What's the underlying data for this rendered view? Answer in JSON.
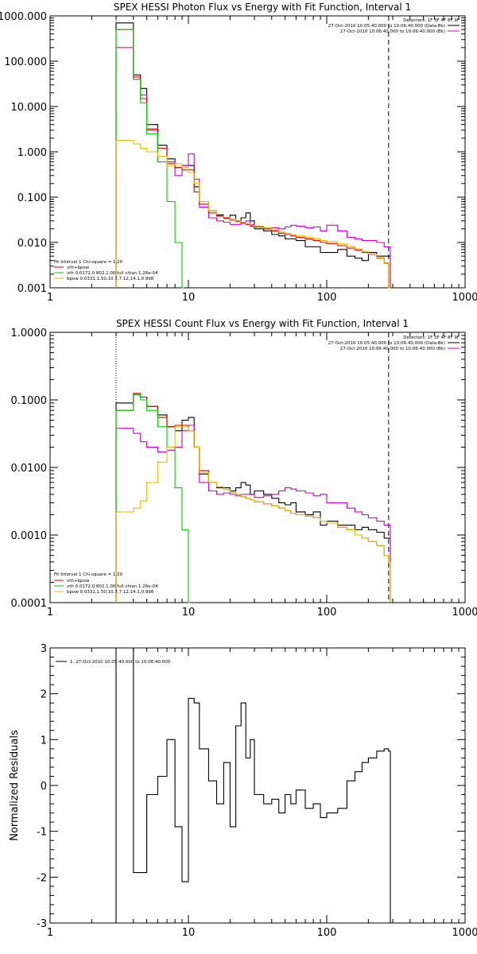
{
  "chart_data": [
    {
      "type": "line",
      "title": "SPEX HESSI Photon Flux vs Energy with Fit Function, Interval 1",
      "xlabel": "",
      "ylabel": "",
      "xscale": "log",
      "yscale": "log",
      "xlim": [
        1,
        1000
      ],
      "ylim": [
        0.001,
        1000
      ],
      "xticks": [
        "1",
        "10",
        "100",
        "1000"
      ],
      "yticks": [
        "0.001",
        "0.010",
        "0.100",
        "1.000",
        "10.000",
        "100.000",
        "1000.000"
      ],
      "info": {
        "line1": "Detectors: 1F 3F 4F 8F 9F",
        "line2": "27-Oct-2010 10:05:40.000 to 10:06:40.000 (Data-Bk)",
        "line3": "27-Oct-2010 10:06:40.000 to 10:06:40.000 (Bk)"
      },
      "fitlegend": {
        "header": "Fit Interval 1     Chi-square = 1.20",
        "items": [
          {
            "label": "vth+bpow",
            "color": "#e00000"
          },
          {
            "label": "vth 0.0172,0.802,1.00  full chian 1.26e-04",
            "color": "#00d000"
          },
          {
            "label": "bpow 0.0331,1.50,10.7,7.12,14.1,0.998",
            "color": "#e0c000"
          }
        ]
      },
      "cutoffs": {
        "dotted": 3,
        "dashed": 280
      },
      "series": [
        {
          "key": "data",
          "color": "#000000",
          "x": [
            3,
            3.5,
            4,
            4.5,
            5,
            6,
            7,
            8,
            9,
            10,
            11,
            12,
            14,
            16,
            18,
            20,
            22,
            24,
            26,
            28,
            30,
            35,
            40,
            45,
            50,
            55,
            60,
            70,
            80,
            90,
            100,
            120,
            140,
            160,
            180,
            200,
            230,
            260,
            280
          ],
          "y": [
            700,
            700,
            50,
            25,
            4,
            1.4,
            0.7,
            0.45,
            0.5,
            0.5,
            0.17,
            0.08,
            0.05,
            0.04,
            0.035,
            0.04,
            0.03,
            0.035,
            0.045,
            0.03,
            0.02,
            0.018,
            0.015,
            0.014,
            0.012,
            0.012,
            0.011,
            0.008,
            0.008,
            0.006,
            0.006,
            0.007,
            0.005,
            0.0045,
            0.004,
            0.006,
            0.005,
            0.005,
            0.005
          ]
        },
        {
          "key": "background",
          "color": "#d000d0",
          "x": [
            3,
            3.5,
            4,
            4.5,
            5,
            6,
            7,
            8,
            9,
            10,
            11,
            12,
            14,
            16,
            18,
            20,
            22,
            24,
            26,
            28,
            30,
            35,
            40,
            45,
            50,
            55,
            60,
            70,
            80,
            90,
            100,
            120,
            140,
            160,
            180,
            200,
            230,
            260,
            280
          ],
          "y": [
            200,
            200,
            40,
            18,
            3,
            0.6,
            0.6,
            0.3,
            0.5,
            0.9,
            0.25,
            0.06,
            0.035,
            0.03,
            0.028,
            0.025,
            0.025,
            0.028,
            0.03,
            0.025,
            0.022,
            0.02,
            0.021,
            0.02,
            0.022,
            0.024,
            0.023,
            0.021,
            0.022,
            0.018,
            0.024,
            0.018,
            0.013,
            0.012,
            0.011,
            0.011,
            0.01,
            0.008,
            0.008
          ]
        },
        {
          "key": "total-fit",
          "color": "#e00000",
          "x": [
            3,
            3.5,
            4,
            4.5,
            5,
            6,
            7,
            8,
            9,
            10,
            11,
            12,
            14,
            16,
            18,
            20,
            22,
            24,
            26,
            28,
            30,
            35,
            40,
            45,
            50,
            55,
            60,
            70,
            80,
            90,
            100,
            120,
            140,
            160,
            180,
            200,
            230,
            260,
            280
          ],
          "y": [
            500,
            500,
            45,
            15,
            3.2,
            1.2,
            0.55,
            0.45,
            0.4,
            0.4,
            0.13,
            0.07,
            0.045,
            0.038,
            0.034,
            0.031,
            0.029,
            0.027,
            0.025,
            0.023,
            0.022,
            0.02,
            0.018,
            0.016,
            0.015,
            0.014,
            0.013,
            0.012,
            0.011,
            0.01,
            0.0095,
            0.0085,
            0.0075,
            0.0068,
            0.006,
            0.0055,
            0.0045,
            0.0035,
            0.001
          ]
        },
        {
          "key": "thermal",
          "color": "#00d000",
          "x": [
            3,
            3.5,
            4,
            4.5,
            5,
            6,
            7,
            8,
            9
          ],
          "y": [
            500,
            500,
            40,
            12,
            2.5,
            0.6,
            0.08,
            0.01,
            0.001
          ]
        },
        {
          "key": "broken-power",
          "color": "#e0c000",
          "x": [
            3,
            3.5,
            4,
            4.5,
            5,
            6,
            7,
            8,
            9,
            10,
            11,
            12,
            14,
            16,
            18,
            20,
            22,
            24,
            26,
            28,
            30,
            35,
            40,
            45,
            50,
            55,
            60,
            70,
            80,
            90,
            100,
            120,
            140,
            160,
            180,
            200,
            230,
            260,
            280
          ],
          "y": [
            1.8,
            1.8,
            1.5,
            1.2,
            1,
            0.8,
            0.5,
            0.55,
            0.45,
            0.35,
            0.2,
            0.08,
            0.05,
            0.042,
            0.036,
            0.033,
            0.03,
            0.028,
            0.026,
            0.024,
            0.023,
            0.021,
            0.019,
            0.017,
            0.016,
            0.015,
            0.014,
            0.013,
            0.012,
            0.011,
            0.0105,
            0.0093,
            0.0082,
            0.0072,
            0.0063,
            0.0056,
            0.0046,
            0.0036,
            0.001
          ]
        }
      ]
    },
    {
      "type": "line",
      "title": "SPEX HESSI Count Flux vs Energy with Fit Function, Interval 1",
      "xlabel": "",
      "ylabel": "",
      "xscale": "log",
      "yscale": "log",
      "xlim": [
        1,
        1000
      ],
      "ylim": [
        0.0001,
        1
      ],
      "xticks": [
        "1",
        "10",
        "100",
        "1000"
      ],
      "yticks": [
        "0.0001",
        "0.0010",
        "0.0100",
        "0.1000",
        "1.0000"
      ],
      "info": {
        "line1": "Detectors: 1F 3F 4F 8F 9F",
        "line2": "27-Oct-2010 10:05:40.000 to 10:06:40.000 (Data-Bk)",
        "line3": "27-Oct-2010 10:06:40.000 to 10:06:40.000 (Bk)"
      },
      "fitlegend": {
        "header": "Fit Interval 1     Chi-square = 1.20",
        "items": [
          {
            "label": "vth+bpow",
            "color": "#e00000"
          },
          {
            "label": "vth 0.0172,0.802,1.00  full chian 1.26e-04",
            "color": "#00d000"
          },
          {
            "label": "bpow 0.0331,1.50,10.7,7.12,14.1,0.998",
            "color": "#e0c000"
          }
        ]
      },
      "cutoffs": {
        "dotted": 3,
        "dashed": 280
      },
      "series": [
        {
          "key": "data",
          "color": "#000000",
          "x": [
            3,
            3.5,
            4,
            4.5,
            5,
            6,
            7,
            8,
            9,
            10,
            11,
            12,
            14,
            16,
            18,
            20,
            22,
            24,
            26,
            28,
            30,
            35,
            40,
            45,
            50,
            55,
            60,
            70,
            80,
            90,
            100,
            120,
            140,
            160,
            180,
            200,
            230,
            260,
            280
          ],
          "y": [
            0.09,
            0.09,
            0.12,
            0.11,
            0.08,
            0.06,
            0.04,
            0.035,
            0.05,
            0.055,
            0.02,
            0.008,
            0.006,
            0.005,
            0.005,
            0.0045,
            0.005,
            0.006,
            0.0055,
            0.004,
            0.0045,
            0.004,
            0.0035,
            0.003,
            0.0028,
            0.003,
            0.0022,
            0.002,
            0.0022,
            0.0014,
            0.0016,
            0.0014,
            0.0014,
            0.0012,
            0.0013,
            0.0012,
            0.0011,
            0.0009,
            0.0009
          ]
        },
        {
          "key": "background",
          "color": "#d000d0",
          "x": [
            3,
            3.5,
            4,
            4.5,
            5,
            6,
            7,
            8,
            9,
            10,
            11,
            12,
            14,
            16,
            18,
            20,
            22,
            24,
            26,
            28,
            30,
            35,
            40,
            45,
            50,
            55,
            60,
            70,
            80,
            90,
            100,
            120,
            140,
            160,
            180,
            200,
            230,
            260,
            280
          ],
          "y": [
            0.038,
            0.038,
            0.032,
            0.024,
            0.02,
            0.017,
            0.018,
            0.02,
            0.035,
            0.042,
            0.02,
            0.006,
            0.0045,
            0.004,
            0.0042,
            0.004,
            0.0038,
            0.004,
            0.004,
            0.004,
            0.0036,
            0.0038,
            0.004,
            0.0045,
            0.005,
            0.0048,
            0.0045,
            0.0042,
            0.0038,
            0.004,
            0.003,
            0.003,
            0.0025,
            0.0022,
            0.002,
            0.0018,
            0.0016,
            0.0014,
            0.0014
          ]
        },
        {
          "key": "total-fit",
          "color": "#e00000",
          "x": [
            3,
            3.5,
            4,
            4.5,
            5,
            6,
            7,
            8,
            9,
            10,
            11,
            12,
            14,
            16,
            18,
            20,
            22,
            24,
            26,
            28,
            30,
            35,
            40,
            45,
            50,
            55,
            60,
            70,
            80,
            90,
            100,
            120,
            140,
            160,
            180,
            200,
            230,
            260,
            280
          ],
          "y": [
            0.07,
            0.07,
            0.125,
            0.11,
            0.08,
            0.055,
            0.04,
            0.042,
            0.042,
            0.035,
            0.02,
            0.009,
            0.006,
            0.0052,
            0.0047,
            0.0043,
            0.004,
            0.0037,
            0.0035,
            0.0033,
            0.0031,
            0.0029,
            0.0027,
            0.0025,
            0.0023,
            0.0021,
            0.002,
            0.0019,
            0.0018,
            0.0016,
            0.0015,
            0.0013,
            0.0012,
            0.001,
            0.0009,
            0.0008,
            0.0007,
            0.0005,
            0.0004
          ]
        },
        {
          "key": "thermal",
          "color": "#00d000",
          "x": [
            3,
            3.5,
            4,
            4.5,
            5,
            6,
            7,
            8,
            9,
            10
          ],
          "y": [
            0.07,
            0.07,
            0.12,
            0.1,
            0.07,
            0.04,
            0.02,
            0.005,
            0.0012,
            0.0001
          ]
        },
        {
          "key": "broken-power",
          "color": "#e0c000",
          "x": [
            3,
            3.5,
            4,
            4.5,
            5,
            6,
            7,
            8,
            9,
            10,
            11,
            12,
            14,
            16,
            18,
            20,
            22,
            24,
            26,
            28,
            30,
            35,
            40,
            45,
            50,
            55,
            60,
            70,
            80,
            90,
            100,
            120,
            140,
            160,
            180,
            200,
            230,
            260,
            280
          ],
          "y": [
            0.0022,
            0.0022,
            0.0025,
            0.0032,
            0.006,
            0.012,
            0.02,
            0.04,
            0.04,
            0.035,
            0.02,
            0.0085,
            0.006,
            0.0052,
            0.0047,
            0.0043,
            0.004,
            0.0037,
            0.0035,
            0.0033,
            0.0031,
            0.0029,
            0.0027,
            0.0025,
            0.0023,
            0.0021,
            0.002,
            0.0019,
            0.0018,
            0.0016,
            0.0015,
            0.0013,
            0.0012,
            0.001,
            0.0009,
            0.0008,
            0.0007,
            0.0005,
            0.0004
          ]
        }
      ]
    },
    {
      "type": "line",
      "title": "",
      "xlabel": "",
      "ylabel": "Normalized Residuals",
      "xscale": "log",
      "yscale": "linear",
      "xlim": [
        1,
        1000
      ],
      "ylim": [
        -3,
        3
      ],
      "xticks": [
        "1",
        "10",
        "100",
        "1000"
      ],
      "yticks": [
        "-3",
        "-2",
        "-1",
        "0",
        "1",
        "2",
        "3"
      ],
      "legend": "1. 27-Oct-2010 10:05:40.000 to 10:06:40.000",
      "series": [
        {
          "key": "residuals",
          "color": "#000000",
          "x": [
            3,
            3.5,
            4,
            4.5,
            5,
            6,
            7,
            8,
            9,
            10,
            11,
            12,
            14,
            16,
            18,
            20,
            22,
            24,
            26,
            28,
            30,
            35,
            40,
            45,
            50,
            55,
            60,
            70,
            80,
            90,
            100,
            120,
            140,
            160,
            180,
            200,
            230,
            260,
            280
          ],
          "y": [
            3,
            3,
            -1.9,
            -1.9,
            -0.2,
            0.2,
            1,
            -0.9,
            -2.1,
            1.9,
            1.8,
            0.8,
            0.1,
            -0.4,
            0.5,
            -0.9,
            1.3,
            1.8,
            0.6,
            1,
            -0.2,
            -0.4,
            -0.3,
            -0.6,
            -0.2,
            -0.4,
            -0.1,
            -0.5,
            -0.4,
            -0.7,
            -0.6,
            -0.5,
            0.1,
            0.3,
            0.5,
            0.6,
            0.75,
            0.8,
            0.75
          ]
        }
      ]
    }
  ]
}
